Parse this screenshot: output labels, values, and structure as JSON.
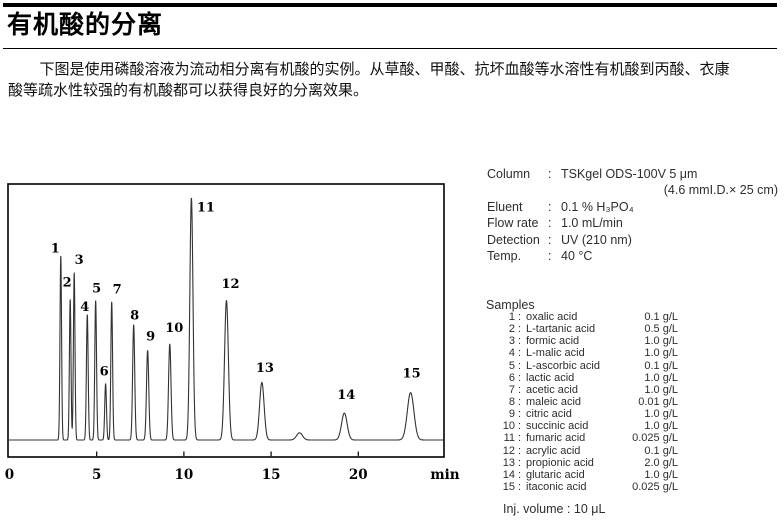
{
  "header": {
    "title": "有机酸的分离"
  },
  "intro": {
    "lines": [
      "下图是使用磷酸溶液为流动相分离有机酸的实例。从草酸、甲酸、抗坏血酸等水溶性有机酸到丙酸、衣康",
      "酸等疏水性较强的有机酸都可以获得良好的分离效果。"
    ]
  },
  "conditions": {
    "colon": ":",
    "rows": [
      {
        "label": "Column",
        "value": "TSKgel ODS-100V 5 μm",
        "align": "left"
      },
      {
        "label": "",
        "value": "(4.6 mmI.D.× 25 cm)",
        "align": "right"
      },
      {
        "label": "Eluent",
        "value": "0.1 % H₃PO₄",
        "align": "left"
      },
      {
        "label": "Flow rate",
        "value": "1.0 mL/min",
        "align": "left"
      },
      {
        "label": "Detection",
        "value": "UV (210 nm)",
        "align": "left"
      },
      {
        "label": "Temp.",
        "value": "40 °C",
        "align": "left"
      }
    ]
  },
  "samples": {
    "heading": "Samples",
    "colon": ":",
    "rows": [
      {
        "num": "1",
        "name": "oxalic acid",
        "conc": "0.1 g/L"
      },
      {
        "num": "2",
        "name": "L-tartanic acid",
        "conc": "0.5 g/L"
      },
      {
        "num": "3",
        "name": "formic acid",
        "conc": "1.0 g/L"
      },
      {
        "num": "4",
        "name": "L-malic acid",
        "conc": "1.0 g/L"
      },
      {
        "num": "5",
        "name": "L-ascorbic acid",
        "conc": "0.1 g/L"
      },
      {
        "num": "6",
        "name": "lactic acid",
        "conc": "1.0 g/L"
      },
      {
        "num": "7",
        "name": "acetic acid",
        "conc": "1.0 g/L"
      },
      {
        "num": "8",
        "name": "maleic acid",
        "conc": "0.01 g/L"
      },
      {
        "num": "9",
        "name": "citric acid",
        "conc": "1.0 g/L"
      },
      {
        "num": "10",
        "name": "succinic acid",
        "conc": "1.0 g/L"
      },
      {
        "num": "11",
        "name": "fumaric acid",
        "conc": "0.025 g/L"
      },
      {
        "num": "12",
        "name": "acrylic acid",
        "conc": "0.1 g/L"
      },
      {
        "num": "13",
        "name": "propionic acid",
        "conc": "2.0 g/L"
      },
      {
        "num": "14",
        "name": "glutaric acid",
        "conc": "1.0 g/L"
      },
      {
        "num": "15",
        "name": "itaconic acid",
        "conc": "0.025 g/L"
      }
    ],
    "inj": "Inj. volume : 10 μL"
  },
  "chart_data": {
    "type": "line",
    "title": "",
    "xlabel": "min",
    "ylabel": "",
    "xlim": [
      0,
      24.9
    ],
    "ylim": [
      0,
      1
    ],
    "grid": false,
    "x_ticks": [
      5,
      10,
      15,
      20
    ],
    "x_tick_labels": [
      "0",
      "5",
      "10",
      "15",
      "20"
    ],
    "x_tick_label_positions": [
      0,
      5,
      10,
      15,
      20
    ],
    "unit_label": "min",
    "peaks": [
      {
        "label": "1",
        "t_min": 2.94,
        "height": 0.72,
        "sigma": 0.045,
        "dx": -5.5,
        "dy": -3
      },
      {
        "label": "2",
        "t_min": 3.48,
        "height": 0.55,
        "sigma": 0.045,
        "dx": -3,
        "dy": -12.5
      },
      {
        "label": "3",
        "t_min": 3.71,
        "height": 0.655,
        "sigma": 0.045,
        "dx": 5,
        "dy": -8.5
      },
      {
        "label": "4",
        "t_min": 4.46,
        "height": 0.49,
        "sigma": 0.05,
        "dx": -2.5,
        "dy": -3.5
      },
      {
        "label": "5",
        "t_min": 4.94,
        "height": 0.545,
        "sigma": 0.05,
        "dx": 1,
        "dy": -8
      },
      {
        "label": "6",
        "t_min": 5.51,
        "height": 0.22,
        "sigma": 0.05,
        "dx": -1.5,
        "dy": -8
      },
      {
        "label": "7",
        "t_min": 5.86,
        "height": 0.54,
        "sigma": 0.05,
        "dx": 5.5,
        "dy": -8.5
      },
      {
        "label": "8",
        "t_min": 7.12,
        "height": 0.45,
        "sigma": 0.06,
        "dx": 1,
        "dy": -5.5
      },
      {
        "label": "9",
        "t_min": 7.92,
        "height": 0.35,
        "sigma": 0.065,
        "dx": 3,
        "dy": -10
      },
      {
        "label": "10",
        "t_min": 9.19,
        "height": 0.375,
        "sigma": 0.07,
        "dx": 4.5,
        "dy": -12
      },
      {
        "label": "11",
        "t_min": 10.43,
        "height": 0.945,
        "sigma": 0.09,
        "dx": 14.5,
        "dy": 13.5
      },
      {
        "label": "12",
        "t_min": 12.44,
        "height": 0.545,
        "sigma": 0.11,
        "dx": 4,
        "dy": -12.5
      },
      {
        "label": "13",
        "t_min": 14.47,
        "height": 0.225,
        "sigma": 0.13,
        "dx": 3,
        "dy": -10.5
      },
      {
        "label": "",
        "t_min": 16.63,
        "height": 0.028,
        "sigma": 0.17,
        "dx": 0,
        "dy": 0
      },
      {
        "label": "14",
        "t_min": 19.2,
        "height": 0.105,
        "sigma": 0.16,
        "dx": 2,
        "dy": -14
      },
      {
        "label": "15",
        "t_min": 23.0,
        "height": 0.185,
        "sigma": 0.19,
        "dx": 1,
        "dy": -15
      }
    ]
  }
}
